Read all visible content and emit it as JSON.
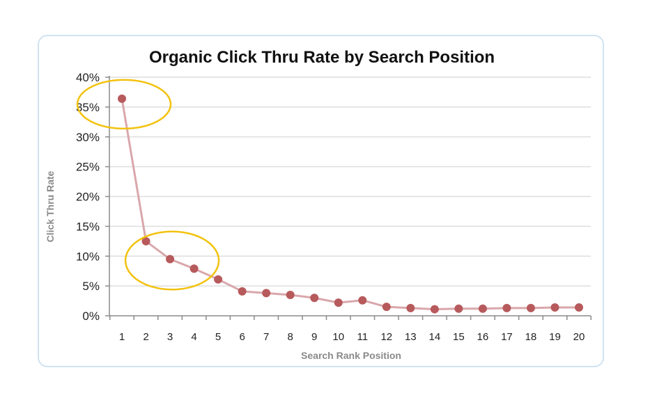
{
  "chart_data": {
    "type": "line",
    "title": "Organic Click Thru Rate by Search Position",
    "xlabel": "Search Rank Position",
    "ylabel": "Click Thru Rate",
    "categories": [
      "1",
      "2",
      "3",
      "4",
      "5",
      "6",
      "7",
      "8",
      "9",
      "10",
      "11",
      "12",
      "13",
      "14",
      "15",
      "16",
      "17",
      "18",
      "19",
      "20"
    ],
    "values": [
      36.4,
      12.5,
      9.5,
      7.9,
      6.1,
      4.1,
      3.8,
      3.5,
      3.0,
      2.2,
      2.6,
      1.5,
      1.3,
      1.1,
      1.2,
      1.2,
      1.3,
      1.3,
      1.4,
      1.4
    ],
    "yticks": [
      "0%",
      "5%",
      "10%",
      "15%",
      "20%",
      "25%",
      "30%",
      "35%",
      "40%"
    ],
    "ylim": [
      0,
      40
    ],
    "grid": true,
    "legend": "none",
    "colors": {
      "line": "#d9a7ab",
      "marker": "#b75a5c",
      "grid": "#dedede",
      "axis": "#8a8a8a",
      "highlight": "#f2c20f",
      "frame": "#cfe3f2"
    },
    "annotations": [
      {
        "type": "highlight-ellipse",
        "around_positions": [
          1
        ],
        "color": "#f2c20f"
      },
      {
        "type": "highlight-ellipse",
        "around_positions": [
          2,
          3,
          4
        ],
        "color": "#f2c20f"
      }
    ]
  }
}
